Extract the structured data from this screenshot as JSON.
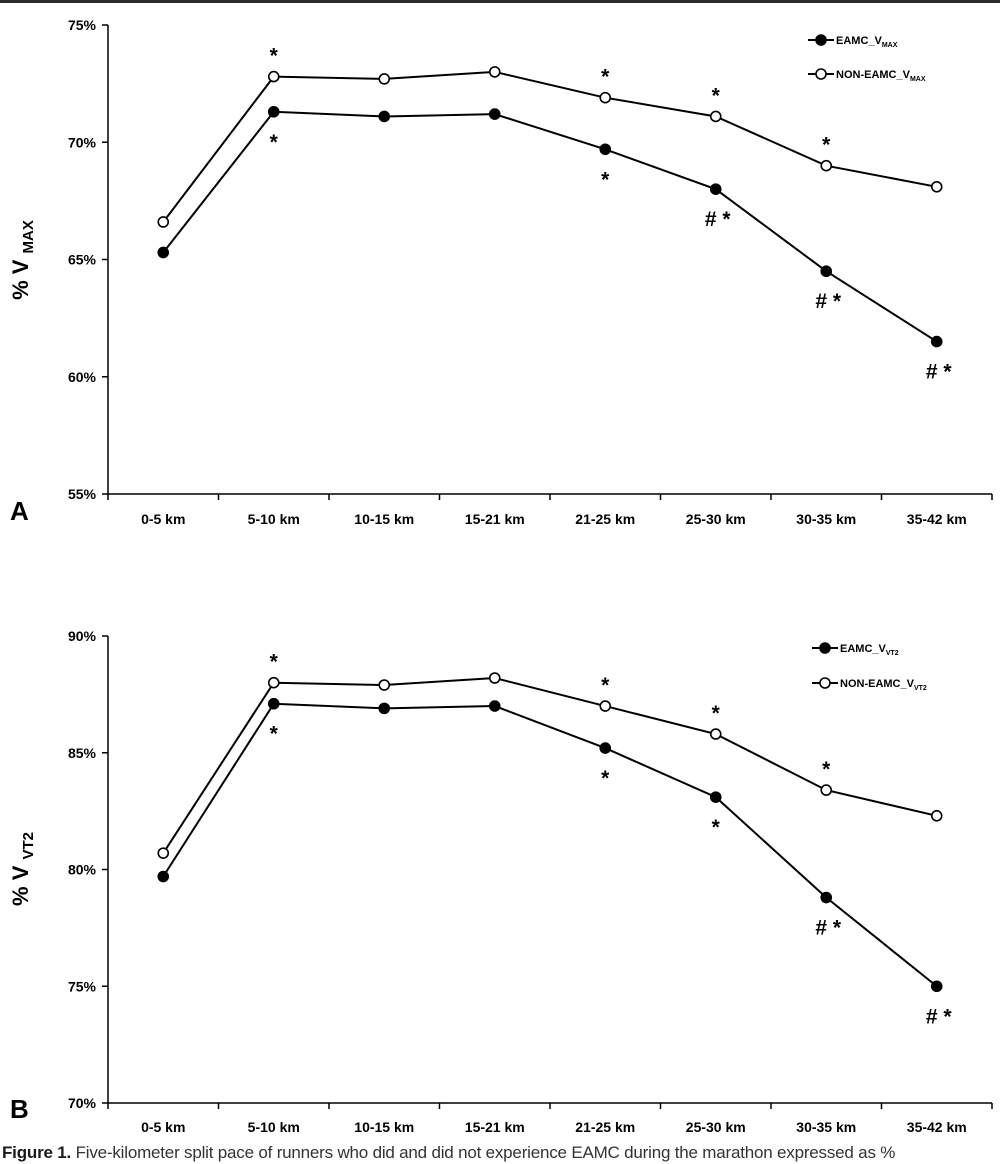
{
  "chart_data": [
    {
      "type": "line",
      "panel_label": "A",
      "ylabel_main": "% V",
      "ylabel_sub": "MAX",
      "categories": [
        "0-5 km",
        "5-10 km",
        "10-15 km",
        "15-21 km",
        "21-25 km",
        "25-30 km",
        "30-35 km",
        "35-42 km"
      ],
      "ylim": [
        55,
        75
      ],
      "yticks": [
        55,
        60,
        65,
        70,
        75
      ],
      "ytick_labels": [
        "55%",
        "60%",
        "65%",
        "70%",
        "75%"
      ],
      "series": [
        {
          "name": "EAMC_V",
          "name_sub": "MAX",
          "marker": "filled",
          "values": [
            65.3,
            71.3,
            71.1,
            71.2,
            69.7,
            68.0,
            64.5,
            61.5
          ],
          "annotations": [
            "",
            "*",
            "",
            "",
            "*",
            "# *",
            "# *",
            "# *"
          ]
        },
        {
          "name": "NON-EAMC_V",
          "name_sub": "MAX",
          "marker": "open",
          "values": [
            66.6,
            72.8,
            72.7,
            73.0,
            71.9,
            71.1,
            69.0,
            68.1
          ],
          "annotations": [
            "",
            "*",
            "",
            "",
            "*",
            "*",
            "*",
            ""
          ]
        }
      ]
    },
    {
      "type": "line",
      "panel_label": "B",
      "ylabel_main": "% V",
      "ylabel_sub": "VT2",
      "categories": [
        "0-5 km",
        "5-10 km",
        "10-15 km",
        "15-21 km",
        "21-25 km",
        "25-30 km",
        "30-35 km",
        "35-42 km"
      ],
      "ylim": [
        70,
        90
      ],
      "yticks": [
        70,
        75,
        80,
        85,
        90
      ],
      "ytick_labels": [
        "70%",
        "75%",
        "80%",
        "85%",
        "90%"
      ],
      "series": [
        {
          "name": "EAMC_V",
          "name_sub": "VT2",
          "marker": "filled",
          "values": [
            79.7,
            87.1,
            86.9,
            87.0,
            85.2,
            83.1,
            78.8,
            75.0
          ],
          "annotations": [
            "",
            "*",
            "",
            "",
            "*",
            "*",
            "# *",
            "# *"
          ]
        },
        {
          "name": "NON-EAMC_V",
          "name_sub": "VT2",
          "marker": "open",
          "values": [
            80.7,
            88.0,
            87.9,
            88.2,
            87.0,
            85.8,
            83.4,
            82.3
          ],
          "annotations": [
            "",
            "*",
            "",
            "",
            "*",
            "*",
            "*",
            ""
          ]
        }
      ]
    }
  ],
  "caption": {
    "label": "Figure 1.",
    "text": " Five-kilometer split pace of runners who did and did not experience EAMC during the marathon expressed as %"
  }
}
